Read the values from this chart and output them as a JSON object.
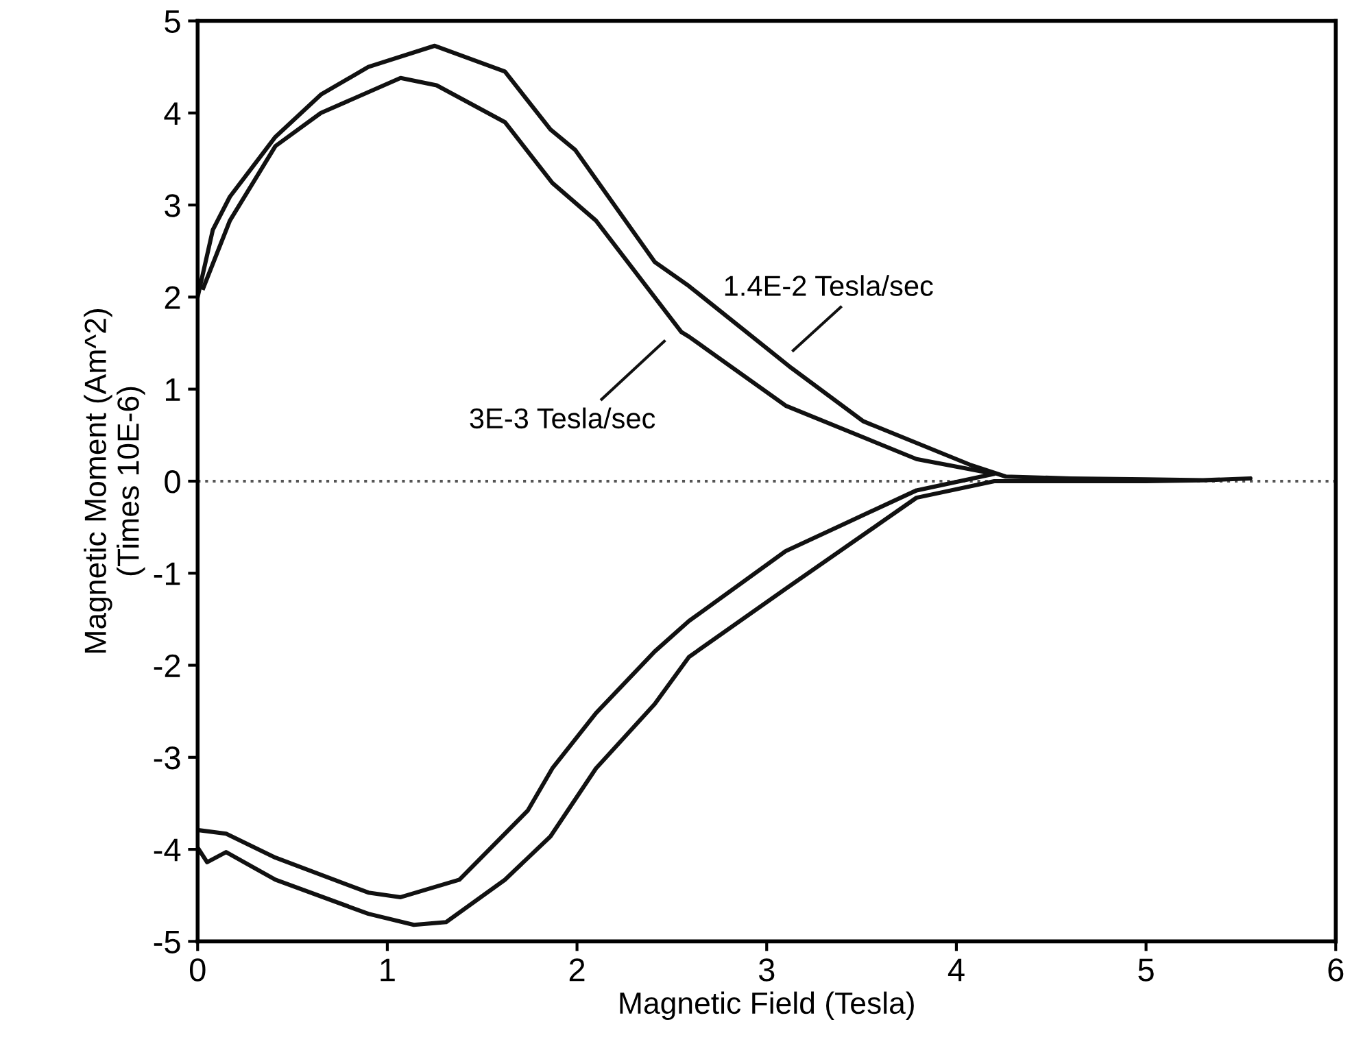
{
  "chart_data": {
    "type": "line",
    "xlabel": "Magnetic Field (Tesla)",
    "ylabel": "Magnetic Moment (Am^2)\n(Times 10E-6)",
    "xlim": [
      0,
      6
    ],
    "xticks": [
      0,
      1,
      2,
      3,
      4,
      5,
      6
    ],
    "ylim": [
      -5,
      5
    ],
    "yticks": [
      -5,
      -4,
      -3,
      -2,
      -1,
      0,
      1,
      2,
      3,
      4,
      5
    ],
    "grid": false,
    "legend": "center",
    "marker": "none",
    "line_style": "solid",
    "ref_lines": [
      {
        "axis": "y",
        "value": 0,
        "line_style": "dotted",
        "color": "#555555"
      }
    ],
    "series": [
      {
        "name": "1.4E-2 Tesla/sec",
        "color": "#111111",
        "x": [
          0,
          0.08,
          0.17,
          0.41,
          0.65,
          0.9,
          1.25,
          1.62,
          1.86,
          1.99,
          2.41,
          2.59,
          3.13,
          3.51,
          4.07,
          4.26,
          4.6,
          5.0,
          5.3,
          5.55,
          5.3,
          5.0,
          4.6,
          4.2,
          3.79,
          3.1,
          2.59,
          2.41,
          2.1,
          1.86,
          1.62,
          1.31,
          1.14,
          0.9,
          0.41,
          0.15,
          0.05,
          0
        ],
        "values": [
          2.0,
          2.73,
          3.09,
          3.74,
          4.2,
          4.5,
          4.73,
          4.45,
          3.82,
          3.6,
          2.38,
          2.12,
          1.23,
          0.65,
          0.18,
          0.05,
          0.03,
          0.02,
          0.01,
          0.03,
          0.01,
          0.0,
          0.0,
          0.0,
          -0.18,
          -1.17,
          -1.91,
          -2.42,
          -3.12,
          -3.86,
          -4.33,
          -4.79,
          -4.82,
          -4.7,
          -4.33,
          -4.03,
          -4.14,
          -3.98
        ]
      },
      {
        "name": "3E-3 Tesla/sec",
        "color": "#111111",
        "x": [
          0.03,
          0.17,
          0.41,
          0.65,
          1.07,
          1.26,
          1.62,
          1.87,
          2.1,
          2.55,
          2.59,
          3.1,
          3.79,
          4.2,
          3.79,
          3.1,
          2.59,
          2.41,
          2.1,
          1.87,
          1.74,
          1.38,
          1.07,
          0.9,
          0.41,
          0.15,
          0
        ],
        "values": [
          2.1,
          2.83,
          3.64,
          4.0,
          4.38,
          4.3,
          3.9,
          3.24,
          2.83,
          1.62,
          1.57,
          0.82,
          0.24,
          0.08,
          -0.1,
          -0.76,
          -1.52,
          -1.85,
          -2.52,
          -3.12,
          -3.58,
          -4.33,
          -4.52,
          -4.47,
          -4.09,
          -3.83,
          -3.79
        ]
      }
    ]
  }
}
